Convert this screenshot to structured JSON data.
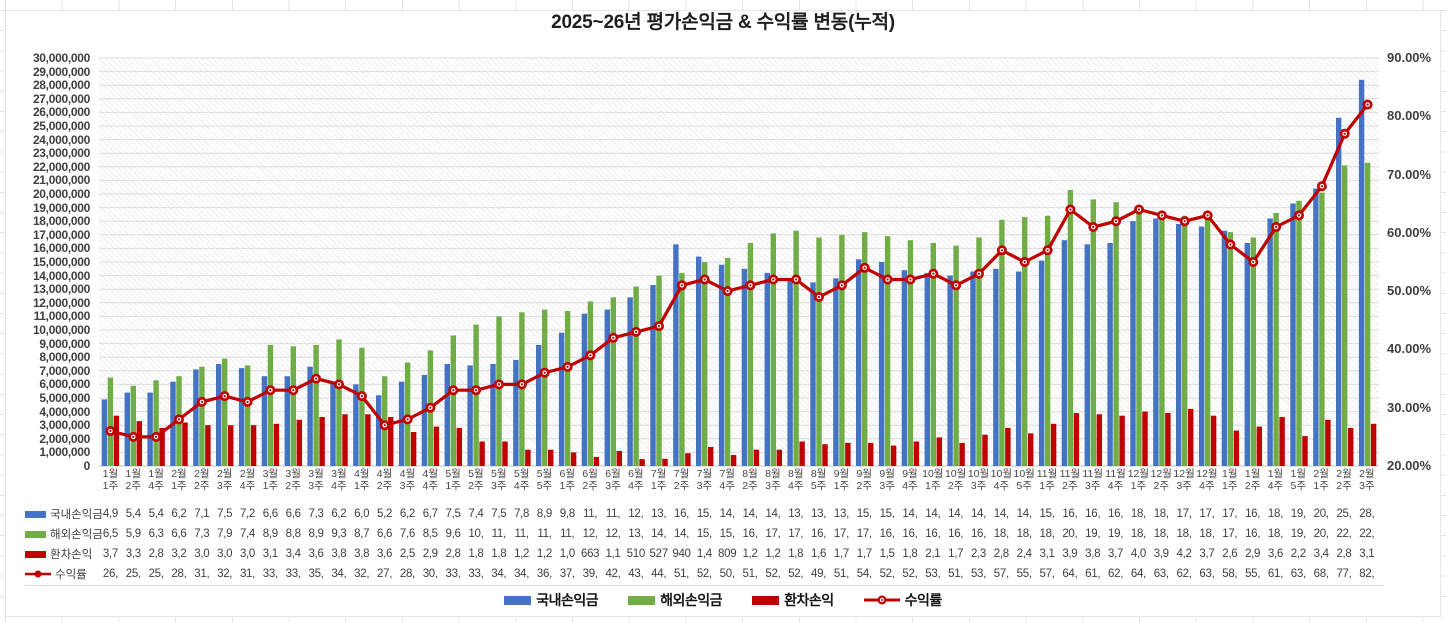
{
  "title": "2025~26년 평가손익금 & 수익률 변동(누적)",
  "legend": {
    "domestic": "국내손익금",
    "overseas": "해외손익금",
    "fx": "환차손익",
    "yield": "수익률"
  },
  "colors": {
    "domestic_bar": "#4472C4",
    "overseas_bar": "#70AD47",
    "fx_bar": "#C00000",
    "yield_line": "#C00000",
    "gridline": "#dcdcdc",
    "axis_text": "#3f3f3f"
  },
  "left_axis": {
    "min": 0,
    "max": 30000000,
    "step": 1000000,
    "labels": [
      "30,000,000",
      "29,000,000",
      "28,000,000",
      "27,000,000",
      "26,000,000",
      "25,000,000",
      "24,000,000",
      "23,000,000",
      "22,000,000",
      "21,000,000",
      "20,000,000",
      "19,000,000",
      "18,000,000",
      "17,000,000",
      "16,000,000",
      "15,000,000",
      "14,000,000",
      "13,000,000",
      "12,000,000",
      "11,000,000",
      "10,000,000",
      "9,000,000",
      "8,000,000",
      "7,000,000",
      "6,000,000",
      "5,000,000",
      "4,000,000",
      "3,000,000",
      "2,000,000",
      "1,000,000",
      "0"
    ]
  },
  "right_axis": {
    "min_pct": 20,
    "max_pct": 90,
    "step_pct": 10,
    "labels": [
      "90.00%",
      "80.00%",
      "70.00%",
      "60.00%",
      "50.00%",
      "40.00%",
      "30.00%",
      "20.00%"
    ]
  },
  "chart_data": {
    "type": "combo: grouped bars (left axis, KRW) + line (right axis, %)",
    "categories_month": [
      "1월",
      "1월",
      "1월",
      "2월",
      "2월",
      "2월",
      "2월",
      "3월",
      "3월",
      "3월",
      "3월",
      "4월",
      "4월",
      "4월",
      "4월",
      "5월",
      "5월",
      "5월",
      "5월",
      "5월",
      "6월",
      "6월",
      "6월",
      "6월",
      "7월",
      "7월",
      "7월",
      "7월",
      "8월",
      "8월",
      "8월",
      "8월",
      "9월",
      "9월",
      "9월",
      "9월",
      "10월",
      "10월",
      "10월",
      "10월",
      "10월",
      "11월",
      "11월",
      "11월",
      "11월",
      "12월",
      "12월",
      "12월",
      "12월",
      "1월",
      "1월",
      "1월",
      "1월",
      "2월",
      "2월",
      "2월"
    ],
    "categories_week": [
      "1주",
      "2주",
      "4주",
      "1주",
      "2주",
      "3주",
      "4주",
      "1주",
      "2주",
      "3주",
      "4주",
      "1주",
      "2주",
      "3주",
      "4주",
      "1주",
      "2주",
      "3주",
      "4주",
      "5주",
      "1주",
      "2주",
      "3주",
      "4주",
      "1주",
      "2주",
      "3주",
      "4주",
      "2주",
      "3주",
      "4주",
      "5주",
      "1주",
      "2주",
      "3주",
      "4주",
      "1주",
      "2주",
      "3주",
      "4주",
      "5주",
      "1주",
      "2주",
      "3주",
      "4주",
      "1주",
      "2주",
      "3주",
      "4주",
      "1주",
      "2주",
      "4주",
      "5주",
      "1주",
      "2주",
      "3주"
    ],
    "series": [
      {
        "name": "국내손익금",
        "type": "bar",
        "axis": "left",
        "color": "#4472C4",
        "unit": "millions KRW",
        "values": [
          4.9,
          5.4,
          5.4,
          6.2,
          7.1,
          7.5,
          7.2,
          6.6,
          6.6,
          7.3,
          6.2,
          6.0,
          5.2,
          6.2,
          6.7,
          7.5,
          7.4,
          7.5,
          7.8,
          8.9,
          9.8,
          11.2,
          11.5,
          12.4,
          13.3,
          16.3,
          15.4,
          14.8,
          14.5,
          14.2,
          13.8,
          13.5,
          13.8,
          15.2,
          15.0,
          14.4,
          14.2,
          14.0,
          14.3,
          14.5,
          14.3,
          15.1,
          16.6,
          16.3,
          16.4,
          18.0,
          18.2,
          17.8,
          17.6,
          17.3,
          16.4,
          18.2,
          19.3,
          20.4,
          25.6,
          28.4
        ]
      },
      {
        "name": "해외손익금",
        "type": "bar",
        "axis": "left",
        "color": "#70AD47",
        "unit": "millions KRW",
        "values": [
          6.5,
          5.9,
          6.3,
          6.6,
          7.3,
          7.9,
          7.4,
          8.9,
          8.8,
          8.9,
          9.3,
          8.7,
          6.6,
          7.6,
          8.5,
          9.6,
          10.4,
          11.0,
          11.3,
          11.5,
          11.4,
          12.1,
          12.4,
          13.2,
          14.0,
          14.2,
          15.0,
          15.3,
          16.4,
          17.1,
          17.3,
          16.8,
          17.0,
          17.2,
          16.9,
          16.6,
          16.4,
          16.2,
          16.8,
          18.1,
          18.3,
          18.4,
          20.3,
          19.6,
          19.4,
          18.8,
          18.6,
          18.4,
          18.2,
          17.2,
          16.8,
          18.6,
          19.5,
          20.1,
          22.1,
          22.3
        ]
      },
      {
        "name": "환차손익",
        "type": "bar",
        "axis": "left",
        "color": "#C00000",
        "unit": "millions KRW",
        "values": [
          3.7,
          3.3,
          2.8,
          3.2,
          3.0,
          3.0,
          3.0,
          3.1,
          3.4,
          3.6,
          3.8,
          3.8,
          3.6,
          2.5,
          2.9,
          2.8,
          1.8,
          1.8,
          1.2,
          1.2,
          1.0,
          0.663,
          1.1,
          0.51,
          0.527,
          0.94,
          1.4,
          0.809,
          1.2,
          1.2,
          1.8,
          1.6,
          1.7,
          1.7,
          1.5,
          1.8,
          2.1,
          1.7,
          2.3,
          2.8,
          2.4,
          3.1,
          3.9,
          3.8,
          3.7,
          4.0,
          3.9,
          4.2,
          3.7,
          2.6,
          2.9,
          3.6,
          2.2,
          3.4,
          2.8,
          3.1
        ]
      },
      {
        "name": "수익률",
        "type": "line",
        "axis": "right",
        "color": "#C00000",
        "unit": "%",
        "values": [
          26,
          25,
          25,
          28,
          31,
          32,
          31,
          33,
          33,
          35,
          34,
          32,
          27,
          28,
          30,
          33,
          33,
          34,
          34,
          36,
          37,
          39,
          42,
          43,
          44,
          51,
          52,
          50,
          51,
          52,
          52,
          49,
          51,
          54,
          52,
          52,
          53,
          51,
          53,
          57,
          55,
          57,
          64,
          61,
          62,
          64,
          63,
          62,
          63,
          58,
          55,
          61,
          63,
          68,
          77,
          82
        ]
      }
    ],
    "table_display": {
      "국내손익금": [
        "4,9",
        "5,4",
        "5,4",
        "6,2",
        "7,1",
        "7,5",
        "7,2",
        "6,6",
        "6,6",
        "7,3",
        "6,2",
        "6,0",
        "5,2",
        "6,2",
        "6,7",
        "7,5",
        "7,4",
        "7,5",
        "7,8",
        "8,9",
        "9,8",
        "11,",
        "11,",
        "12,",
        "13,",
        "16,",
        "15,",
        "14,",
        "14,",
        "14,",
        "13,",
        "13,",
        "13,",
        "15,",
        "15,",
        "14,",
        "14,",
        "14,",
        "14,",
        "14,",
        "14,",
        "15,",
        "16,",
        "16,",
        "16,",
        "18,",
        "18,",
        "17,",
        "17,",
        "17,",
        "16,",
        "18,",
        "19,",
        "20,",
        "25,",
        "28,"
      ],
      "해외손익금": [
        "6,5",
        "5,9",
        "6,3",
        "6,6",
        "7,3",
        "7,9",
        "7,4",
        "8,9",
        "8,8",
        "8,9",
        "9,3",
        "8,7",
        "6,6",
        "7,6",
        "8,5",
        "9,6",
        "10,",
        "11,",
        "11,",
        "11,",
        "11,",
        "12,",
        "12,",
        "13,",
        "14,",
        "14,",
        "15,",
        "15,",
        "16,",
        "17,",
        "17,",
        "16,",
        "17,",
        "17,",
        "16,",
        "16,",
        "16,",
        "16,",
        "16,",
        "18,",
        "18,",
        "18,",
        "20,",
        "19,",
        "19,",
        "18,",
        "18,",
        "18,",
        "18,",
        "17,",
        "16,",
        "18,",
        "19,",
        "20,",
        "22,",
        "22,"
      ],
      "환차손익": [
        "3,7",
        "3,3",
        "2,8",
        "3,2",
        "3,0",
        "3,0",
        "3,0",
        "3,1",
        "3,4",
        "3,6",
        "3,8",
        "3,8",
        "3,6",
        "2,5",
        "2,9",
        "2,8",
        "1,8",
        "1,8",
        "1,2",
        "1,2",
        "1,0",
        "663",
        "1,1",
        "510",
        "527",
        "940",
        "1,4",
        "809",
        "1,2",
        "1,2",
        "1,8",
        "1,6",
        "1,7",
        "1,7",
        "1,5",
        "1,8",
        "2,1",
        "1,7",
        "2,3",
        "2,8",
        "2,4",
        "3,1",
        "3,9",
        "3,8",
        "3,7",
        "4,0",
        "3,9",
        "4,2",
        "3,7",
        "2,6",
        "2,9",
        "3,6",
        "2,2",
        "3,4",
        "2,8",
        "3,1"
      ],
      "수익률": [
        "26,",
        "25,",
        "25,",
        "28,",
        "31,",
        "32,",
        "31,",
        "33,",
        "33,",
        "35,",
        "34,",
        "32,",
        "27,",
        "28,",
        "30,",
        "33,",
        "33,",
        "34,",
        "34,",
        "36,",
        "37,",
        "39,",
        "42,",
        "43,",
        "44,",
        "51,",
        "52,",
        "50,",
        "51,",
        "52,",
        "52,",
        "49,",
        "51,",
        "54,",
        "52,",
        "52,",
        "53,",
        "51,",
        "53,",
        "57,",
        "55,",
        "57,",
        "64,",
        "61,",
        "62,",
        "64,",
        "63,",
        "62,",
        "63,",
        "58,",
        "55,",
        "61,",
        "63,",
        "68,",
        "77,",
        "82,"
      ]
    },
    "layout": {
      "grid": "horizontal every 1,000,000",
      "plot_fill": "light diagonal hatch",
      "legend_position": "bottom center",
      "data_table": "below x axis"
    }
  }
}
